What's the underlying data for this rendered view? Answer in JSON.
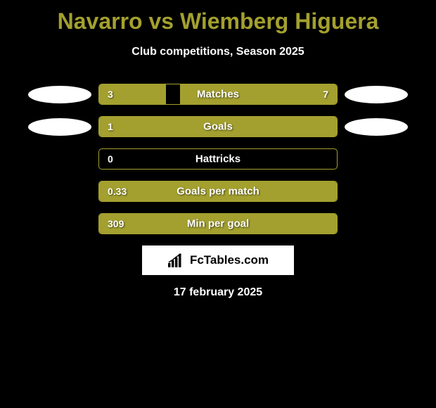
{
  "title": "Navarro vs Wiemberg Higuera",
  "subtitle": "Club competitions, Season 2025",
  "colors": {
    "accent": "#a3a02f",
    "background": "#000000",
    "text": "#ffffff",
    "branding_bg": "#ffffff",
    "branding_text": "#000000"
  },
  "stats": [
    {
      "left_value": "3",
      "label": "Matches",
      "right_value": "7",
      "left_pct": 28,
      "right_pct": 66,
      "show_right_value": true,
      "show_avatars": true
    },
    {
      "left_value": "1",
      "label": "Goals",
      "right_value": "",
      "left_pct": 100,
      "right_pct": 0,
      "show_right_value": false,
      "show_avatars": true
    },
    {
      "left_value": "0",
      "label": "Hattricks",
      "right_value": "",
      "left_pct": 0,
      "right_pct": 0,
      "show_right_value": false,
      "show_avatars": false
    },
    {
      "left_value": "0.33",
      "label": "Goals per match",
      "right_value": "",
      "left_pct": 100,
      "right_pct": 0,
      "show_right_value": false,
      "show_avatars": false
    },
    {
      "left_value": "309",
      "label": "Min per goal",
      "right_value": "",
      "left_pct": 100,
      "right_pct": 0,
      "show_right_value": false,
      "show_avatars": false
    }
  ],
  "branding": "FcTables.com",
  "date": "17 february 2025"
}
